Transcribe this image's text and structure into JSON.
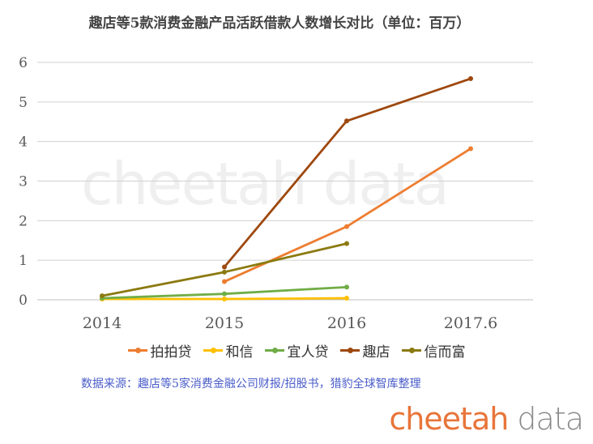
{
  "title": "趣店等5款消费金融产品活跃借款人数增长对比（单位：百万）",
  "source": "数据来源：趣店等5家消费金融公司财报/招股书，猎豹全球智库整理",
  "brand": {
    "part1": "cheetah",
    "part2": " data"
  },
  "watermark": {
    "part1": "cheetah",
    "part2": " data"
  },
  "chart_data": {
    "type": "line",
    "categories": [
      "2014",
      "2015",
      "2016",
      "2017.6"
    ],
    "ylim": [
      0,
      6
    ],
    "yticks": [
      "0",
      "1",
      "2",
      "3",
      "4",
      "5",
      "6"
    ],
    "grid": true,
    "legend_position": "bottom",
    "series": [
      {
        "name": "拍拍贷",
        "color": "#ed7d31",
        "values": [
          null,
          0.46,
          1.85,
          3.82
        ]
      },
      {
        "name": "和信",
        "color": "#ffc000",
        "values": [
          0.02,
          0.02,
          0.04,
          null
        ]
      },
      {
        "name": "宜人贷",
        "color": "#70ad47",
        "values": [
          0.04,
          0.15,
          0.32,
          null
        ]
      },
      {
        "name": "趣店",
        "color": "#9e480e",
        "values": [
          null,
          0.83,
          4.52,
          5.59
        ]
      },
      {
        "name": "信而富",
        "color": "#8b7a10",
        "values": [
          0.1,
          0.7,
          1.42,
          null
        ]
      }
    ]
  }
}
